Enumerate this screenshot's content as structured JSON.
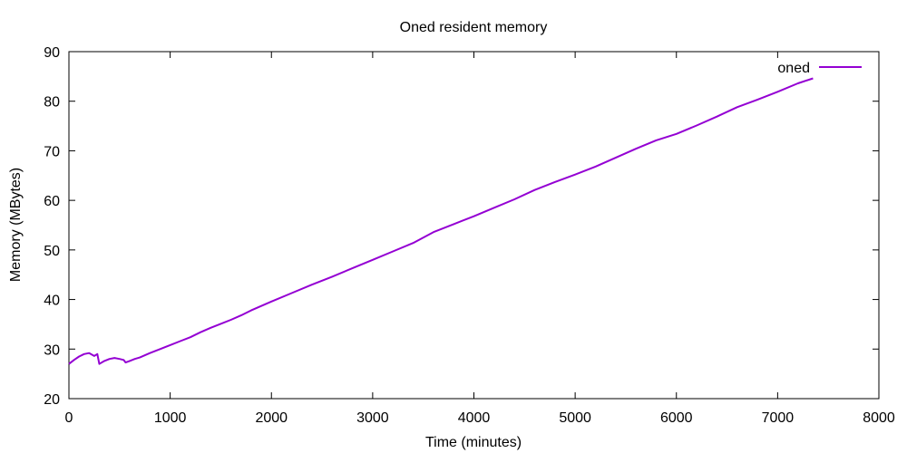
{
  "chart_data": {
    "type": "line",
    "title": "Oned resident memory",
    "xlabel": "Time (minutes)",
    "ylabel": "Memory (MBytes)",
    "xlim": [
      0,
      8000
    ],
    "ylim": [
      20,
      90
    ],
    "x_ticks": [
      0,
      1000,
      2000,
      3000,
      4000,
      5000,
      6000,
      7000,
      8000
    ],
    "y_ticks": [
      20,
      30,
      40,
      50,
      60,
      70,
      80,
      90
    ],
    "grid": false,
    "legend_position": "top-right",
    "series": [
      {
        "name": "oned",
        "color": "#9400d3",
        "x": [
          0,
          50,
          100,
          150,
          200,
          250,
          280,
          300,
          350,
          400,
          450,
          500,
          540,
          560,
          600,
          650,
          700,
          800,
          900,
          1000,
          1100,
          1200,
          1300,
          1400,
          1500,
          1600,
          1700,
          1800,
          1900,
          2000,
          2200,
          2400,
          2600,
          2800,
          3000,
          3200,
          3400,
          3600,
          3800,
          4000,
          4200,
          4400,
          4600,
          4800,
          5000,
          5200,
          5400,
          5600,
          5800,
          6000,
          6200,
          6400,
          6600,
          6800,
          7000,
          7200,
          7350
        ],
        "y": [
          27.0,
          27.8,
          28.5,
          29.0,
          29.2,
          28.6,
          29.0,
          27.0,
          27.6,
          28.0,
          28.2,
          28.0,
          27.8,
          27.3,
          27.6,
          28.0,
          28.3,
          29.2,
          30.0,
          30.8,
          31.6,
          32.4,
          33.4,
          34.3,
          35.1,
          35.9,
          36.8,
          37.8,
          38.7,
          39.6,
          41.3,
          43.0,
          44.6,
          46.3,
          48.0,
          49.7,
          51.4,
          53.6,
          55.2,
          56.8,
          58.5,
          60.2,
          62.1,
          63.7,
          65.2,
          66.8,
          68.6,
          70.4,
          72.1,
          73.4,
          75.1,
          76.9,
          78.8,
          80.3,
          81.9,
          83.6,
          84.6
        ]
      }
    ]
  }
}
